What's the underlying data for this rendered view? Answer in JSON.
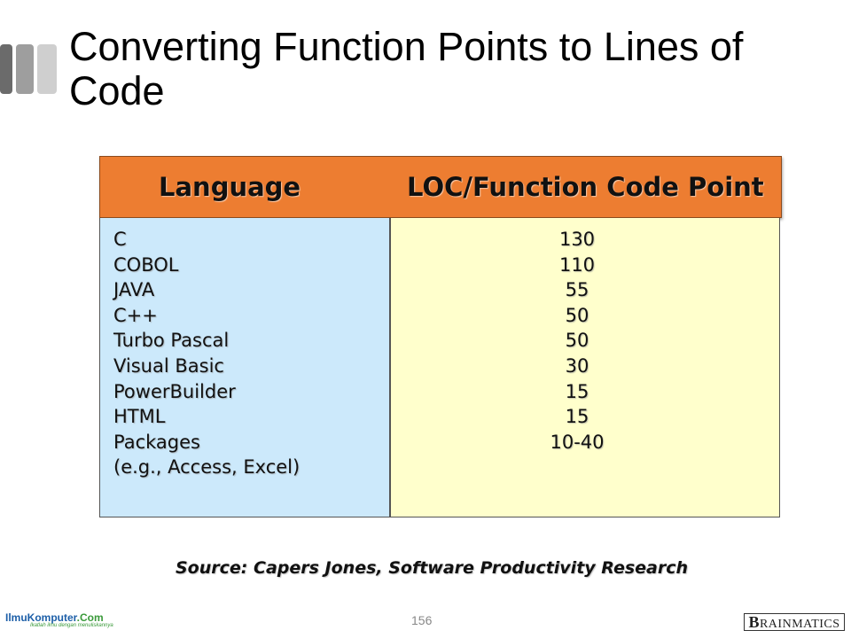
{
  "slide": {
    "title": "Converting Function Points to Lines of Code",
    "page_number": "156",
    "source": "Source: Capers Jones, Software Productivity Research"
  },
  "table": {
    "headers": {
      "language": "Language",
      "loc": "LOC/Function Code Point"
    },
    "rows": [
      {
        "language": "C",
        "loc": "130"
      },
      {
        "language": "COBOL",
        "loc": "110"
      },
      {
        "language": "JAVA",
        "loc": "55"
      },
      {
        "language": "C++",
        "loc": "50"
      },
      {
        "language": "Turbo Pascal",
        "loc": "50"
      },
      {
        "language": "Visual Basic",
        "loc": "30"
      },
      {
        "language": "PowerBuilder",
        "loc": "15"
      },
      {
        "language": "HTML",
        "loc": "15"
      },
      {
        "language": "Packages",
        "loc": "10-40"
      },
      {
        "language": "(e.g., Access, Excel)",
        "loc": ""
      }
    ],
    "colors": {
      "header": "#ed7d31",
      "left_column": "#cce9fb",
      "right_column": "#ffffcc"
    }
  },
  "footer": {
    "left_logo": {
      "name": "IlmuKomputer",
      "suffix": ".Com",
      "tagline": "Ikatlah ilmu dengan menuliskannya"
    },
    "right_logo": {
      "first": "B",
      "rest": "RAINMATICS"
    }
  }
}
